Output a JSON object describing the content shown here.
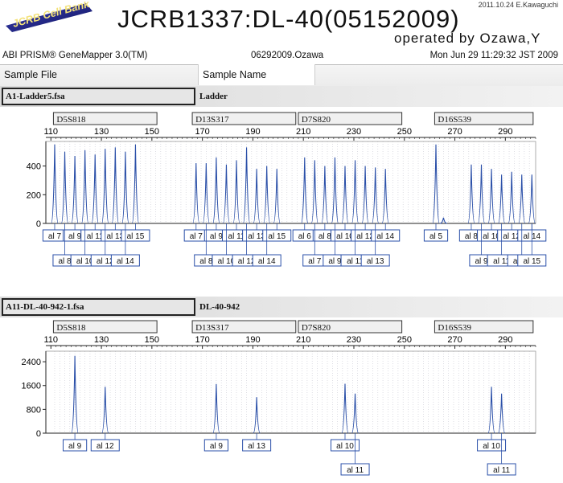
{
  "header": {
    "logo_text": "JCRB Cell Bank",
    "stamp": "2011.10.24 E.Kawaguchi",
    "title": "JCRB1337:DL-40(05152009)",
    "operator": "operated  by Ozawa,Y",
    "software": "ABI PRISM® GeneMapper 3.0(TM)",
    "run_name": "06292009.Ozawa",
    "run_date": "Mon Jun 29 11:29:32 JST 2009"
  },
  "columns": {
    "sample_file": "Sample File",
    "sample_name": "Sample Name"
  },
  "colors": {
    "trace": "#2a4fa8",
    "label_border": "#2a4fa8",
    "grid": "#c8c8d2"
  },
  "chart_data": [
    {
      "type": "line",
      "sample_file": "A1-Ladder5.fsa",
      "sample_name": "Ladder",
      "x_ticks": [
        110,
        130,
        150,
        170,
        190,
        210,
        230,
        250,
        270,
        290
      ],
      "xlim": [
        108,
        302
      ],
      "y_ticks": [
        0,
        200,
        400
      ],
      "ylim": [
        0,
        560
      ],
      "markers": [
        {
          "name": "D5S818",
          "from": 111,
          "to": 152
        },
        {
          "name": "D13S317",
          "from": 166,
          "to": 207
        },
        {
          "name": "D7S820",
          "from": 208,
          "to": 249
        },
        {
          "name": "D16S539",
          "from": 262,
          "to": 301
        }
      ],
      "peaks": [
        {
          "x": 111.5,
          "y": 550
        },
        {
          "x": 115.5,
          "y": 500
        },
        {
          "x": 119.5,
          "y": 470
        },
        {
          "x": 123.5,
          "y": 510
        },
        {
          "x": 127.5,
          "y": 480
        },
        {
          "x": 131.5,
          "y": 520
        },
        {
          "x": 135.5,
          "y": 530
        },
        {
          "x": 139.5,
          "y": 500
        },
        {
          "x": 143.5,
          "y": 550
        },
        {
          "x": 167.5,
          "y": 420
        },
        {
          "x": 171.5,
          "y": 420
        },
        {
          "x": 175.5,
          "y": 460
        },
        {
          "x": 179.5,
          "y": 410
        },
        {
          "x": 183.5,
          "y": 440
        },
        {
          "x": 187.5,
          "y": 530
        },
        {
          "x": 191.5,
          "y": 380
        },
        {
          "x": 195.5,
          "y": 400
        },
        {
          "x": 199.5,
          "y": 380
        },
        {
          "x": 210.5,
          "y": 460
        },
        {
          "x": 214.5,
          "y": 440
        },
        {
          "x": 218.5,
          "y": 400
        },
        {
          "x": 222.5,
          "y": 460
        },
        {
          "x": 226.5,
          "y": 400
        },
        {
          "x": 230.5,
          "y": 440
        },
        {
          "x": 234.5,
          "y": 400
        },
        {
          "x": 238.5,
          "y": 390
        },
        {
          "x": 242.5,
          "y": 380
        },
        {
          "x": 262.5,
          "y": 550
        },
        {
          "x": 265.5,
          "y": 40
        },
        {
          "x": 276.5,
          "y": 410
        },
        {
          "x": 280.5,
          "y": 410
        },
        {
          "x": 284.5,
          "y": 380
        },
        {
          "x": 288.5,
          "y": 340
        },
        {
          "x": 292.5,
          "y": 360
        },
        {
          "x": 296.5,
          "y": 340
        },
        {
          "x": 300.5,
          "y": 340
        }
      ],
      "allele_labels_row1": [
        {
          "text": "al 7",
          "x": 111.5
        },
        {
          "text": "al 9",
          "x": 119.5
        },
        {
          "text": "al 11",
          "x": 127.5
        },
        {
          "text": "al 13",
          "x": 135.5
        },
        {
          "text": "al 15",
          "x": 143.5
        },
        {
          "text": "al 7",
          "x": 167.5
        },
        {
          "text": "al 9",
          "x": 175.5
        },
        {
          "text": "al 11",
          "x": 183.5
        },
        {
          "text": "al 13",
          "x": 191.5
        },
        {
          "text": "al 15",
          "x": 199.5
        },
        {
          "text": "al 6",
          "x": 210.5
        },
        {
          "text": "al 8",
          "x": 218.5
        },
        {
          "text": "al 10",
          "x": 226.5
        },
        {
          "text": "al 12",
          "x": 234.5
        },
        {
          "text": "al 14",
          "x": 242.5
        },
        {
          "text": "al 5",
          "x": 262.5
        },
        {
          "text": "al 8",
          "x": 276.5
        },
        {
          "text": "al 10",
          "x": 284.5
        },
        {
          "text": "al 12",
          "x": 292.5
        },
        {
          "text": "al 14",
          "x": 300.5
        }
      ],
      "allele_labels_row2": [
        {
          "text": "al 8",
          "x": 115.5
        },
        {
          "text": "al 10",
          "x": 123.5
        },
        {
          "text": "al 12",
          "x": 131.5
        },
        {
          "text": "al 14",
          "x": 139.5
        },
        {
          "text": "al 8",
          "x": 171.5
        },
        {
          "text": "al 10",
          "x": 179.5
        },
        {
          "text": "al 12",
          "x": 187.5
        },
        {
          "text": "al 14",
          "x": 195.5
        },
        {
          "text": "al 7",
          "x": 214.5
        },
        {
          "text": "al 9",
          "x": 222.5
        },
        {
          "text": "al 11",
          "x": 230.5
        },
        {
          "text": "al 13",
          "x": 238.5
        },
        {
          "text": "al 9",
          "x": 280.5
        },
        {
          "text": "al 11",
          "x": 288.5
        },
        {
          "text": "al 13",
          "x": 296.5
        },
        {
          "text": "al 15",
          "x": 300.5
        }
      ]
    },
    {
      "type": "line",
      "sample_file": "A11-DL-40-942-1.fsa",
      "sample_name": "DL-40-942",
      "x_ticks": [
        110,
        130,
        150,
        170,
        190,
        210,
        230,
        250,
        270,
        290
      ],
      "xlim": [
        108,
        302
      ],
      "y_ticks": [
        0,
        800,
        1600,
        2400
      ],
      "ylim": [
        0,
        2700
      ],
      "markers": [
        {
          "name": "D5S818",
          "from": 111,
          "to": 152
        },
        {
          "name": "D13S317",
          "from": 166,
          "to": 207
        },
        {
          "name": "D7S820",
          "from": 208,
          "to": 249
        },
        {
          "name": "D16S539",
          "from": 262,
          "to": 301
        }
      ],
      "peaks": [
        {
          "x": 119.5,
          "y": 2600
        },
        {
          "x": 131.5,
          "y": 1560
        },
        {
          "x": 175.5,
          "y": 1650
        },
        {
          "x": 191.5,
          "y": 1210
        },
        {
          "x": 226.5,
          "y": 1660
        },
        {
          "x": 230.5,
          "y": 1330
        },
        {
          "x": 284.5,
          "y": 1560
        },
        {
          "x": 288.5,
          "y": 1330
        }
      ],
      "allele_labels_row1": [
        {
          "text": "al 9",
          "x": 119.5
        },
        {
          "text": "al 12",
          "x": 131.5
        },
        {
          "text": "al 9",
          "x": 175.5
        },
        {
          "text": "al 13",
          "x": 191.5
        },
        {
          "text": "al 10",
          "x": 226.5
        },
        {
          "text": "al 10",
          "x": 284.5
        }
      ],
      "allele_labels_row2": [
        {
          "text": "al 11",
          "x": 230.5
        },
        {
          "text": "al 11",
          "x": 288.5
        }
      ]
    }
  ]
}
